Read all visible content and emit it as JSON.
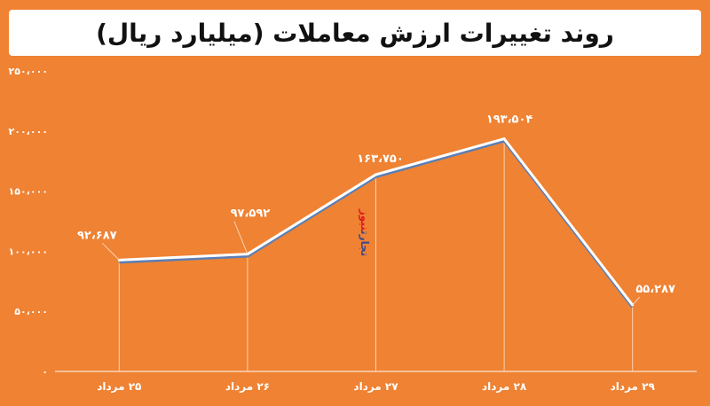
{
  "colors": {
    "background": "#ef8233",
    "line": "#ffffff",
    "shadow": "#5a7fb5",
    "axis": "#ffffff"
  },
  "watermark": {
    "part1": "تجارت",
    "part2": "نیوز"
  },
  "chart_data": {
    "type": "line",
    "title": "روند تغییرات ارزش معاملات (میلیارد ریال)",
    "categories": [
      "۲۵ مرداد",
      "۲۶ مرداد",
      "۲۷ مرداد",
      "۲۸ مرداد",
      "۲۹ مرداد"
    ],
    "values": [
      92687,
      97592,
      163750,
      193504,
      55287
    ],
    "data_labels": [
      "۹۲،۶۸۷",
      "۹۷،۵۹۲",
      "۱۶۳،۷۵۰",
      "۱۹۳،۵۰۴",
      "۵۵،۲۸۷"
    ],
    "yticks": [
      0,
      50000,
      100000,
      150000,
      200000,
      250000
    ],
    "ytick_labels": [
      "۰",
      "۵۰،۰۰۰",
      "۱۰۰،۰۰۰",
      "۱۵۰،۰۰۰",
      "۲۰۰،۰۰۰",
      "۲۵۰،۰۰۰"
    ],
    "ylim": [
      0,
      250000
    ],
    "grid": false,
    "legend": "none"
  }
}
